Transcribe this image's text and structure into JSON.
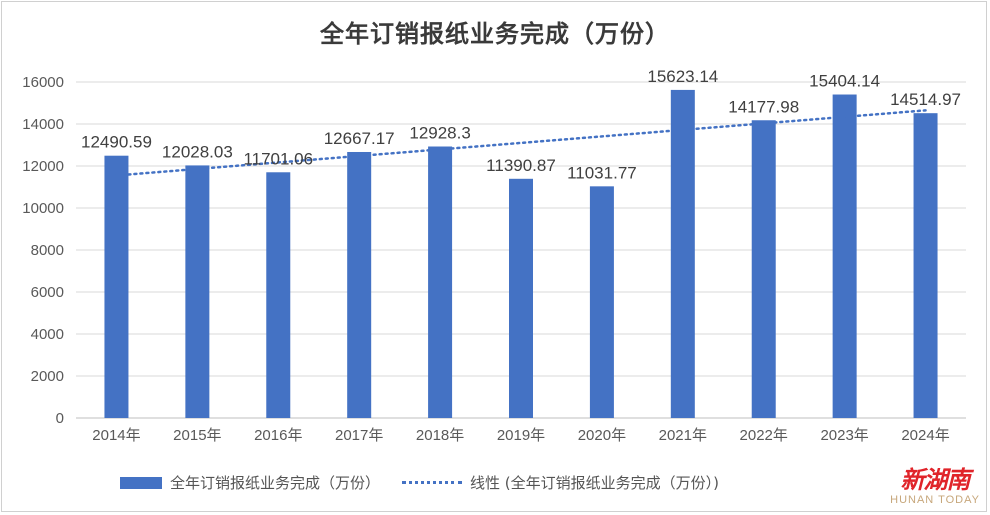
{
  "chart_data": {
    "type": "bar",
    "title": "全年订销报纸业务完成（万份）",
    "categories": [
      "2014年",
      "2015年",
      "2016年",
      "2017年",
      "2018年",
      "2019年",
      "2020年",
      "2021年",
      "2022年",
      "2023年",
      "2024年"
    ],
    "series": [
      {
        "name": "全年订销报纸业务完成（万份）",
        "values": [
          12490.59,
          12028.03,
          11701.06,
          12667.17,
          12928.3,
          11390.87,
          11031.77,
          15623.14,
          14177.98,
          15404.14,
          14514.97
        ]
      }
    ],
    "data_labels": [
      "12490.59",
      "12028.03",
      "11701.06",
      "12667.17",
      "12928.3",
      "11390.87",
      "11031.77",
      "15623.14",
      "14177.98",
      "15404.14",
      "14514.97"
    ],
    "trendline": {
      "name": "线性 (全年订销报纸业务完成（万份）)",
      "type": "linear",
      "start": 11550,
      "end": 14650
    },
    "ylim": [
      0,
      16000
    ],
    "yticks": [
      "0",
      "2000",
      "4000",
      "6000",
      "8000",
      "10000",
      "12000",
      "14000",
      "16000"
    ],
    "grid": true,
    "legend": "bottom",
    "bar_color": "#4472c4"
  },
  "watermark": {
    "cn": "新湖南",
    "en": "HUNAN TODAY"
  }
}
